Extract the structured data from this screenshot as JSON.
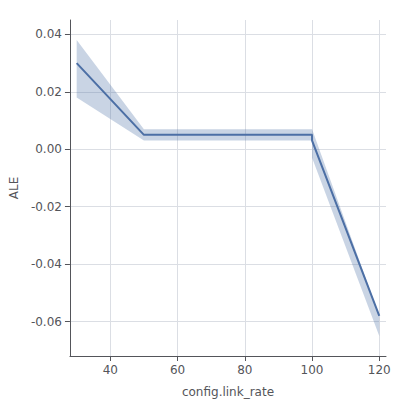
{
  "chart_data": {
    "type": "line",
    "x": [
      30,
      50,
      50.01,
      100,
      100.01,
      120
    ],
    "values": [
      0.03,
      0.005,
      0.005,
      0.005,
      0.003,
      -0.058
    ],
    "upper": [
      0.038,
      0.007,
      0.007,
      0.007,
      0.007,
      -0.058
    ],
    "lower": [
      0.018,
      0.003,
      0.003,
      0.003,
      -0.003,
      -0.065
    ],
    "xlabel": "config.link_rate",
    "ylabel": "ALE",
    "xlim": [
      28,
      122
    ],
    "ylim": [
      -0.072,
      0.045
    ],
    "xticks": [
      40,
      60,
      80,
      100,
      120
    ],
    "yticks": [
      -0.06,
      -0.04,
      -0.02,
      {
        "value": 0,
        "label": "0.00"
      },
      0.02,
      0.04
    ],
    "color": "#4c6fa5",
    "grid": true
  }
}
